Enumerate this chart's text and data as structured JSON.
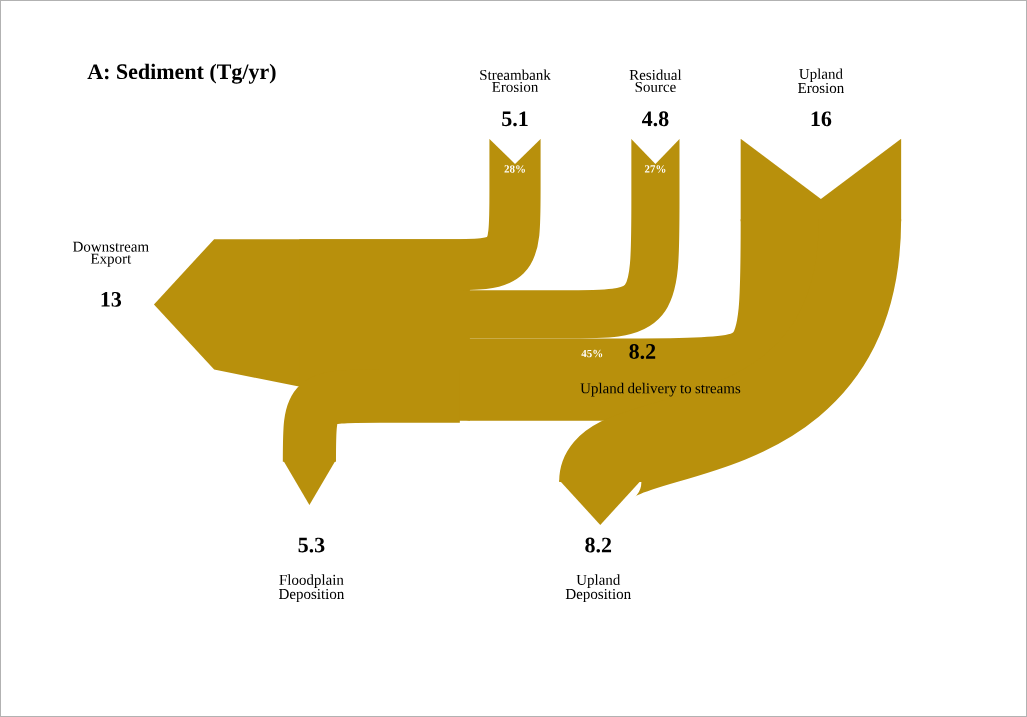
{
  "chart_data": {
    "type": "other",
    "title": "A: Sediment (Tg/yr)",
    "categories": [
      "Streambank Erosion",
      "Residual Source",
      "Upland Erosion",
      "Downstream Export",
      "Upland delivery to streams",
      "Floodplain Deposition",
      "Upland Deposition"
    ],
    "values": [
      5.1,
      4.8,
      16,
      13,
      8.2,
      5.3,
      8.2
    ],
    "value_labels": [
      "5.1",
      "4.8",
      "16",
      "13",
      "8.2",
      "5.3",
      "8.2"
    ],
    "annotations": [
      "28%",
      "27%",
      "45%"
    ],
    "color": "#b8900c"
  }
}
